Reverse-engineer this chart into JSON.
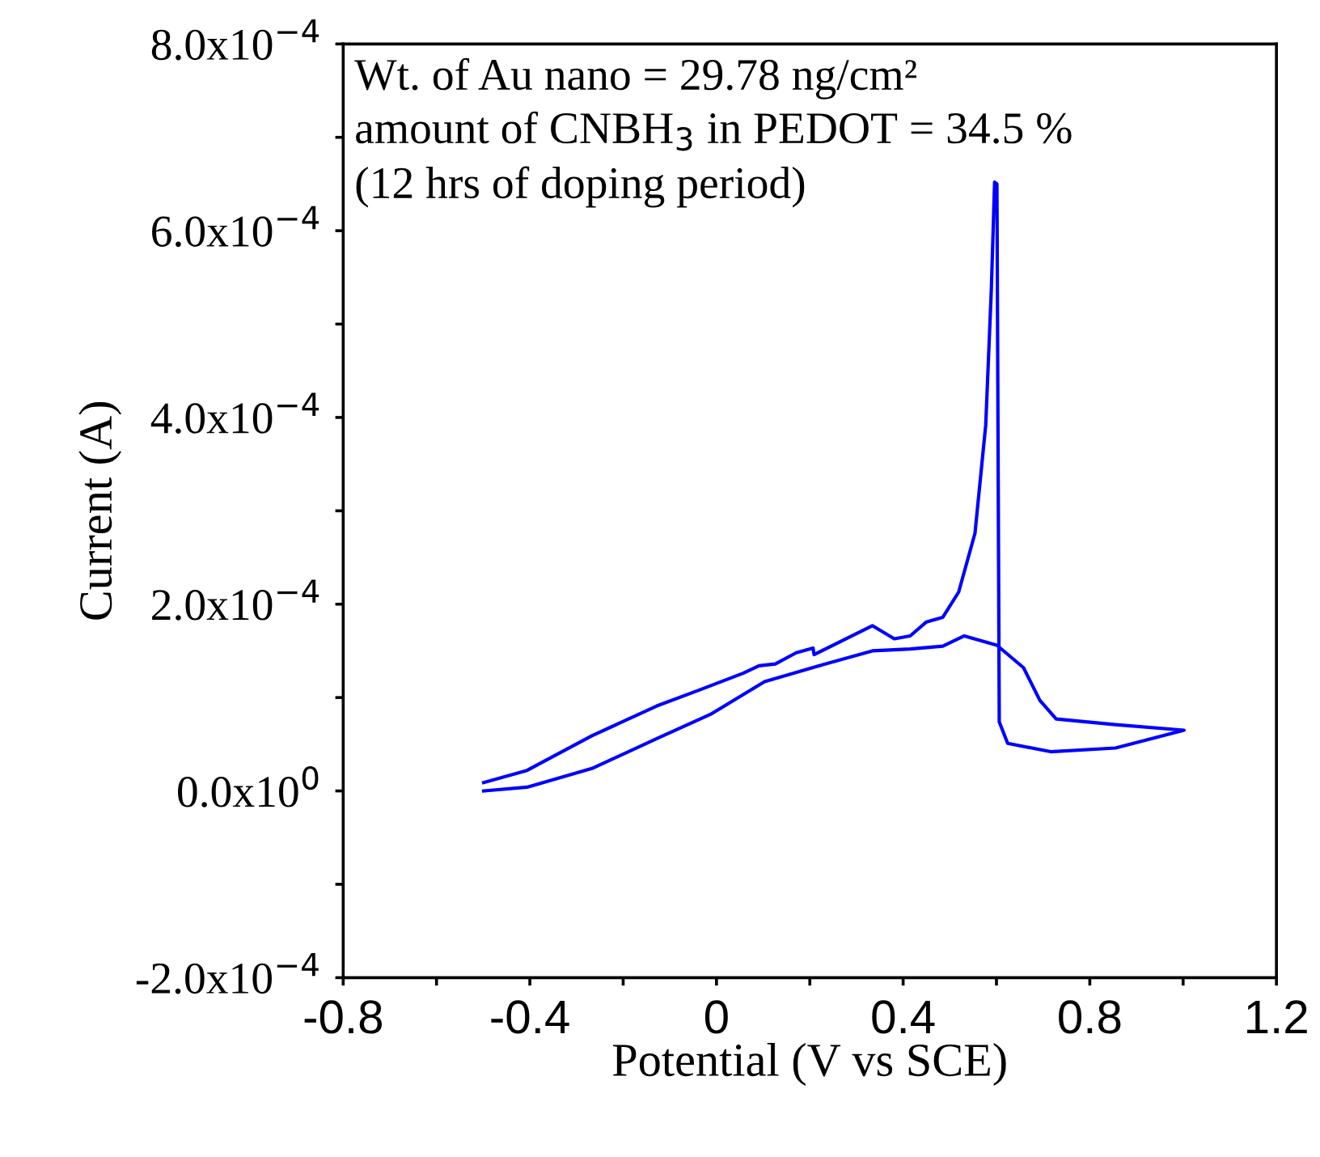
{
  "chart_data": {
    "type": "line",
    "xlabel": "Potential (V vs SCE)",
    "ylabel": "Current (A)",
    "annotations": [
      "Wt. of Au nano = 29.78 ng/cm²",
      "amount of CNBH$_{3}$ in PEDOT = 34.5 %",
      "(12 hrs of doping period)"
    ],
    "xlim": [
      -0.8,
      1.2
    ],
    "xticks": [
      -0.8,
      {
        "value": -0.6,
        "label": null
      },
      -0.4,
      {
        "value": -0.2,
        "label": null
      },
      0,
      {
        "value": 0.2,
        "label": null
      },
      0.4,
      {
        "value": 0.6,
        "label": null
      },
      0.8,
      {
        "value": 1.0,
        "label": null
      },
      1.2
    ],
    "ylim": [
      -0.0002,
      0.0008
    ],
    "yticks": [
      {
        "value": -0.0002,
        "label": "-2.0x10$^{−4}$"
      },
      {
        "value": -0.0001,
        "label": null
      },
      {
        "value": 0,
        "label": "0.0x10$^{0}$"
      },
      {
        "value": 0.0001,
        "label": null
      },
      {
        "value": 0.0002,
        "label": "2.0x10$^{−4}$"
      },
      {
        "value": 0.0003,
        "label": null
      },
      {
        "value": 0.0004,
        "label": "4.0x10$^{−4}$"
      },
      {
        "value": 0.0005,
        "label": null
      },
      {
        "value": 0.0006,
        "label": "6.0x10$^{−4}$"
      },
      {
        "value": 0.0007,
        "label": null
      },
      {
        "value": 0.0008,
        "label": "8.0x10$^{−4}$"
      }
    ],
    "grid": false,
    "legend": false,
    "marker": "none",
    "line_style": "solid",
    "series": [
      {
        "color": "#0000ff",
        "x": [
          -0.499,
          -0.406,
          -0.267,
          -0.128,
          -0.037,
          0.057,
          0.091,
          0.126,
          0.171,
          0.207,
          0.209,
          0.334,
          0.381,
          0.415,
          0.45,
          0.485,
          0.519,
          0.554,
          0.577,
          0.589,
          0.596,
          0.601,
          0.606,
          0.624,
          0.716,
          0.855,
          1.002,
          0.855,
          0.728,
          0.693,
          0.658,
          0.601,
          0.531,
          0.485,
          0.415,
          0.334,
          0.219,
          0.103,
          -0.013,
          -0.128,
          -0.267,
          -0.406,
          -0.499
        ],
        "values": [
          9e-06,
          2.2e-05,
          5.9e-05,
          9.1e-05,
          0.000108,
          0.000126,
          0.000134,
          0.000136,
          0.000148,
          0.000153,
          0.000146,
          0.000177,
          0.000163,
          0.000166,
          0.000181,
          0.000186,
          0.000213,
          0.000276,
          0.000392,
          0.000537,
          0.000652,
          0.00065,
          7.4e-05,
          5.1e-05,
          4.2e-05,
          4.6e-05,
          6.5e-05,
          7.1e-05,
          7.7e-05,
          9.7e-05,
          0.000132,
          0.000156,
          0.000166,
          0.000155,
          0.000152,
          0.00015,
          0.000134,
          0.000117,
          8.2e-05,
          5.6e-05,
          2.4e-05,
          4e-06,
          0.0
        ]
      }
    ]
  }
}
